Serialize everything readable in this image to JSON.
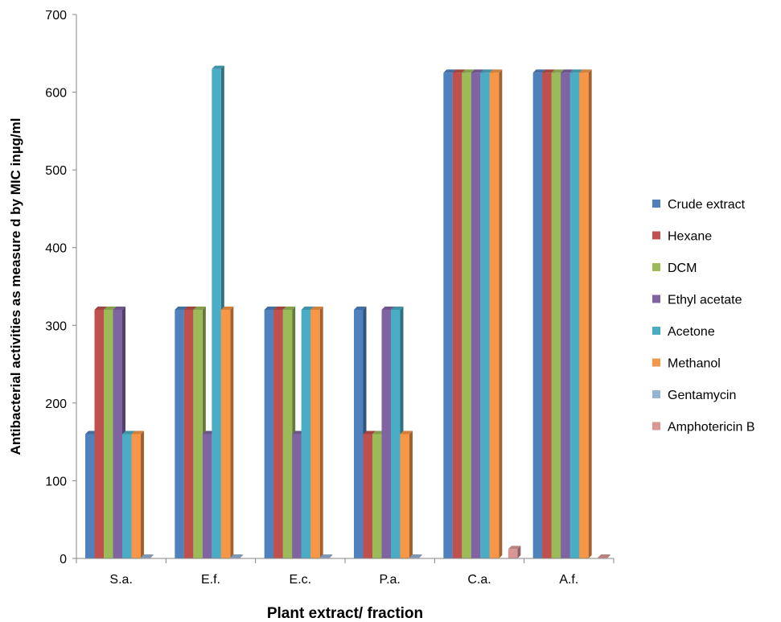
{
  "chart_data": {
    "type": "bar",
    "title": "",
    "xlabel": "Plant extract/ fraction",
    "ylabel": "Antibacterial activities as measure d by MIC inµg/ml",
    "ylim": [
      0,
      700
    ],
    "yticks": [
      "0",
      "100",
      "200",
      "300",
      "400",
      "500",
      "600",
      "700"
    ],
    "categories": [
      "S.a.",
      "E.f.",
      "E.c.",
      "P.a.",
      "C.a.",
      "A.f."
    ],
    "legend_position": "right",
    "grid": false,
    "series": [
      {
        "name": "Crude extract",
        "color": "#4f81bd",
        "values": [
          160,
          320,
          320,
          320,
          625,
          625
        ]
      },
      {
        "name": "Hexane",
        "color": "#c0504d",
        "values": [
          320,
          320,
          320,
          160,
          625,
          625
        ]
      },
      {
        "name": "DCM",
        "color": "#9bbb59",
        "values": [
          320,
          320,
          320,
          160,
          625,
          625
        ]
      },
      {
        "name": "Ethyl acetate",
        "color": "#8064a2",
        "values": [
          320,
          160,
          160,
          320,
          625,
          625
        ]
      },
      {
        "name": "Acetone",
        "color": "#4bacc6",
        "values": [
          160,
          630,
          320,
          320,
          625,
          625
        ]
      },
      {
        "name": "Methanol",
        "color": "#f79646",
        "values": [
          160,
          320,
          320,
          160,
          625,
          625
        ]
      },
      {
        "name": "Gentamycin",
        "color": "#95b3d7",
        "values": [
          1,
          1,
          1,
          1,
          null,
          null
        ]
      },
      {
        "name": "Amphotericin B",
        "color": "#d99694",
        "values": [
          null,
          null,
          null,
          null,
          12,
          1
        ]
      }
    ]
  }
}
